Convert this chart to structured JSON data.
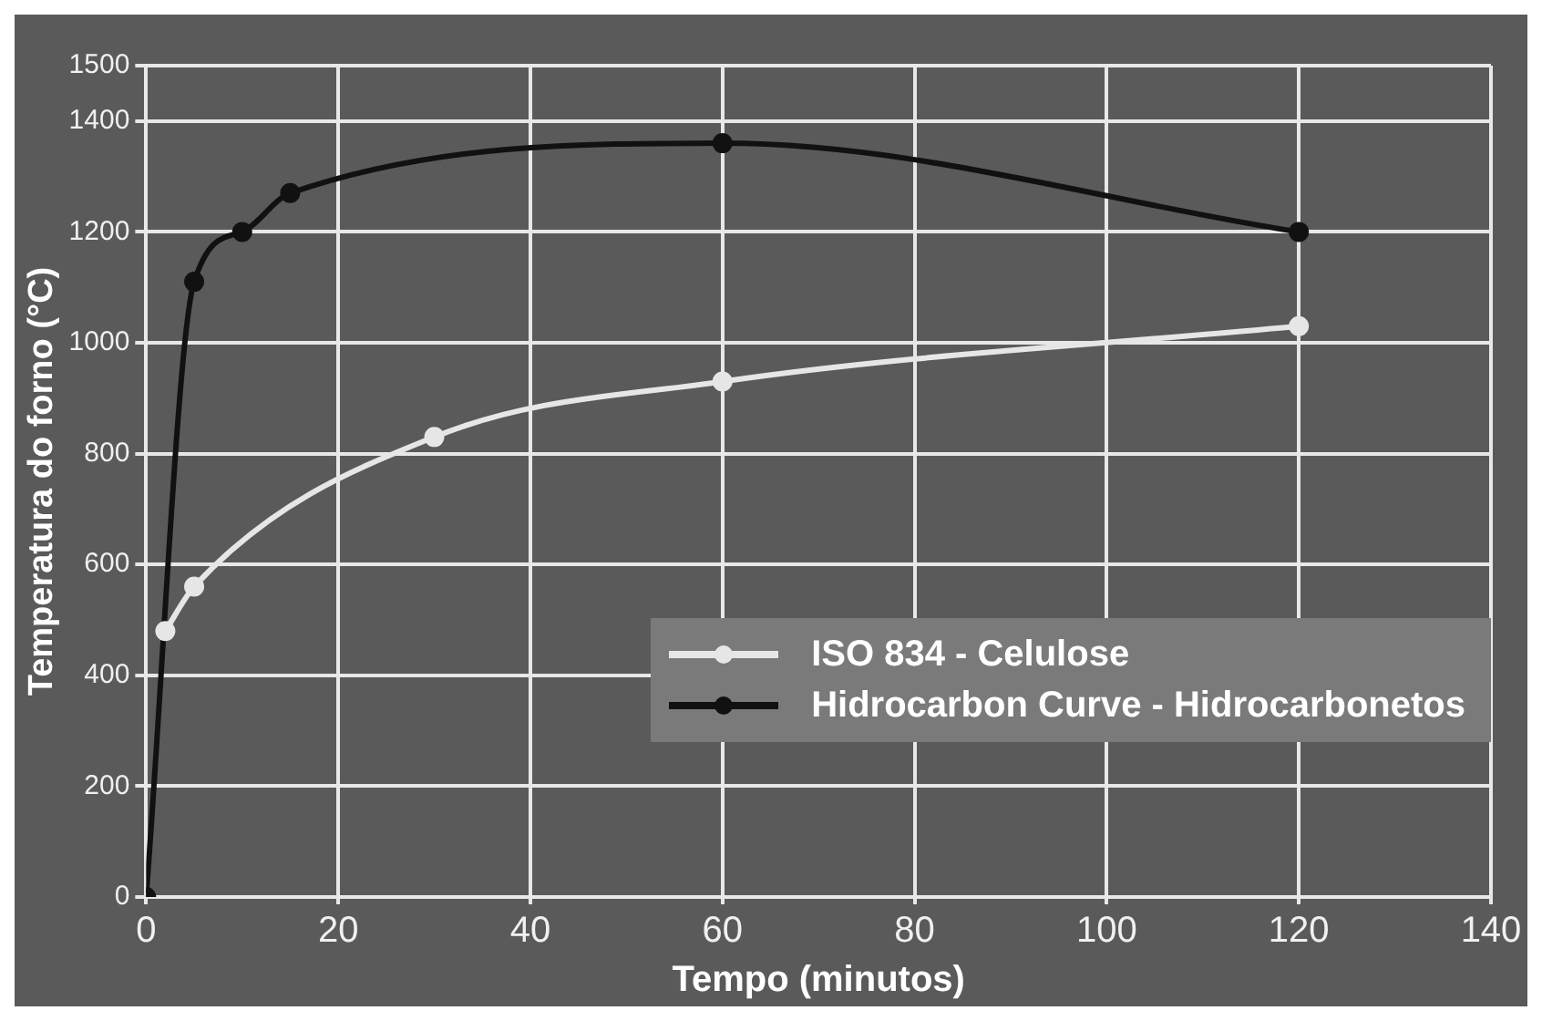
{
  "chart_data": {
    "type": "line",
    "xlabel": "Tempo (minutos)",
    "ylabel": "Temperatura do forno (°C)",
    "xlim": [
      0,
      140
    ],
    "xticks": [
      0,
      20,
      40,
      60,
      80,
      100,
      120,
      140
    ],
    "ylim": [
      0,
      1500
    ],
    "yticks": [
      0,
      200,
      400,
      600,
      800,
      1000,
      1200,
      1400,
      1500
    ],
    "grid": true,
    "legend": "bottom right",
    "marker": "circle",
    "line_style": "solid",
    "series": [
      {
        "name": "ISO 834 - Celulose",
        "color": "#e6e6e6",
        "x": [
          2,
          5,
          30,
          60,
          120
        ],
        "values": [
          480,
          560,
          830,
          930,
          1030
        ]
      },
      {
        "name": "Hidrocarbon Curve - Hidrocarbonetos",
        "color": "#111111",
        "x": [
          0,
          5,
          10,
          15,
          60,
          120
        ],
        "values": [
          0,
          1110,
          1200,
          1270,
          1360,
          1200
        ]
      }
    ]
  }
}
